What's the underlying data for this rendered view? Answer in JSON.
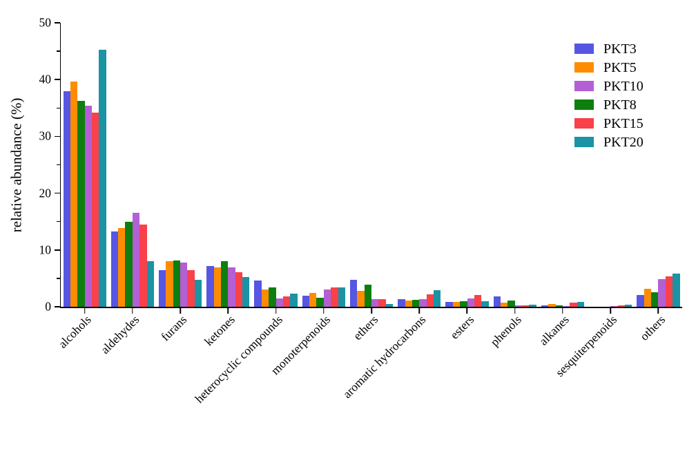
{
  "chart_data": {
    "type": "bar",
    "title": "",
    "xlabel": "",
    "ylabel": "relative abundance (%)",
    "ylim": [
      0,
      50
    ],
    "yticks_major": [
      0,
      10,
      20,
      30,
      40,
      50
    ],
    "yticks_minor": [
      5,
      15,
      25,
      35,
      45
    ],
    "grid": false,
    "legend_position": "upper right",
    "legend_order": [
      "PKT3",
      "PKT5",
      "PKT10",
      "PKT8",
      "PKT15",
      "PKT20"
    ],
    "categories": [
      "alcohols",
      "aldehydes",
      "furans",
      "ketones",
      "heterocyclic compounds",
      "monoterpenoids",
      "ethers",
      "aromatic hydrocarbons",
      "esters",
      "phenols",
      "alkanes",
      "sesquiterpenoids",
      "others"
    ],
    "series": [
      {
        "name": "PKT3",
        "color": "#5656e3",
        "values": [
          37.9,
          13.3,
          6.5,
          7.2,
          4.6,
          1.9,
          4.8,
          1.3,
          0.9,
          1.8,
          0.3,
          0.05,
          2.1
        ]
      },
      {
        "name": "PKT5",
        "color": "#ff8c00",
        "values": [
          39.7,
          13.9,
          8.0,
          6.9,
          3.1,
          2.4,
          2.8,
          1.1,
          0.9,
          0.7,
          0.5,
          0.05,
          3.2
        ]
      },
      {
        "name": "PKT8",
        "color": "#0e7e0e",
        "values": [
          36.2,
          15.0,
          8.1,
          8.0,
          3.4,
          1.6,
          3.9,
          1.2,
          1.0,
          1.1,
          0.25,
          0.05,
          2.6
        ]
      },
      {
        "name": "PKT10",
        "color": "#b45fd4",
        "values": [
          35.4,
          16.5,
          7.8,
          6.9,
          1.5,
          3.1,
          1.4,
          1.4,
          1.5,
          0.3,
          0.15,
          0.1,
          4.9
        ]
      },
      {
        "name": "PKT15",
        "color": "#f8414a",
        "values": [
          34.2,
          14.5,
          6.4,
          6.1,
          1.8,
          3.4,
          1.3,
          2.2,
          2.1,
          0.2,
          0.7,
          0.3,
          5.3
        ]
      },
      {
        "name": "PKT20",
        "color": "#1a93a4",
        "values": [
          45.3,
          8.0,
          4.7,
          5.2,
          2.3,
          3.4,
          0.5,
          2.9,
          1.0,
          0.4,
          0.8,
          0.4,
          5.8
        ]
      }
    ]
  }
}
